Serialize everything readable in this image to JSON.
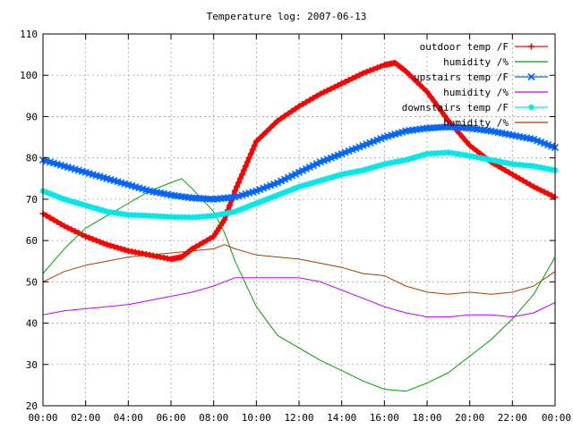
{
  "chart_data": {
    "type": "line",
    "title": "Temperature log: 2007-06-13",
    "xlabel": "",
    "ylabel": "",
    "xlim": [
      0,
      24
    ],
    "ylim": [
      20,
      110
    ],
    "grid": true,
    "legend_position": "top-right",
    "x_ticks": [
      "00:00",
      "02:00",
      "04:00",
      "06:00",
      "08:00",
      "10:00",
      "12:00",
      "14:00",
      "16:00",
      "18:00",
      "20:00",
      "22:00",
      "00:00"
    ],
    "y_ticks": [
      20,
      30,
      40,
      50,
      60,
      70,
      80,
      90,
      100,
      110
    ],
    "series": [
      {
        "name": "outdoor temp /F",
        "color": "#ff0000",
        "marker": "plus",
        "points": [
          [
            0,
            66.5
          ],
          [
            1,
            63.5
          ],
          [
            2,
            61
          ],
          [
            3,
            59
          ],
          [
            4,
            57.5
          ],
          [
            5,
            56.5
          ],
          [
            6,
            55.5
          ],
          [
            6.5,
            56
          ],
          [
            7,
            58
          ],
          [
            8,
            61
          ],
          [
            8.5,
            65
          ],
          [
            9,
            72
          ],
          [
            9.5,
            78
          ],
          [
            10,
            84
          ],
          [
            11,
            89
          ],
          [
            12,
            92.5
          ],
          [
            13,
            95.5
          ],
          [
            14,
            98
          ],
          [
            15,
            100.5
          ],
          [
            16,
            102.5
          ],
          [
            16.5,
            103
          ],
          [
            17,
            101
          ],
          [
            18,
            96
          ],
          [
            19,
            89
          ],
          [
            20,
            83
          ],
          [
            21,
            79
          ],
          [
            22,
            76
          ],
          [
            23,
            73
          ],
          [
            24,
            70.5
          ]
        ]
      },
      {
        "name": "humidity /%",
        "color": "#00a000",
        "marker": "none",
        "points": [
          [
            0,
            52
          ],
          [
            1,
            58
          ],
          [
            2,
            63
          ],
          [
            3,
            66
          ],
          [
            4,
            69
          ],
          [
            5,
            72
          ],
          [
            6,
            74
          ],
          [
            6.5,
            75
          ],
          [
            7,
            72.5
          ],
          [
            8,
            67
          ],
          [
            8.5,
            62
          ],
          [
            9,
            55
          ],
          [
            10,
            44
          ],
          [
            11,
            37
          ],
          [
            12,
            34
          ],
          [
            13,
            31
          ],
          [
            14,
            28.5
          ],
          [
            15,
            26
          ],
          [
            16,
            24
          ],
          [
            17,
            23.5
          ],
          [
            18,
            25.5
          ],
          [
            19,
            28
          ],
          [
            20,
            32
          ],
          [
            21,
            36
          ],
          [
            22,
            41
          ],
          [
            23,
            47
          ],
          [
            24,
            56
          ]
        ]
      },
      {
        "name": "upstairs temp /F",
        "color": "#0066ff",
        "marker": "cross",
        "points": [
          [
            0,
            79.5
          ],
          [
            1,
            78
          ],
          [
            2,
            76.5
          ],
          [
            3,
            75
          ],
          [
            4,
            73.5
          ],
          [
            5,
            72
          ],
          [
            6,
            71
          ],
          [
            7,
            70.3
          ],
          [
            8,
            70
          ],
          [
            9,
            70.5
          ],
          [
            10,
            72
          ],
          [
            11,
            74
          ],
          [
            12,
            76.5
          ],
          [
            13,
            79
          ],
          [
            14,
            81
          ],
          [
            15,
            83
          ],
          [
            16,
            85
          ],
          [
            17,
            86.5
          ],
          [
            18,
            87.2
          ],
          [
            19,
            87.5
          ],
          [
            20,
            87.2
          ],
          [
            21,
            86.5
          ],
          [
            22,
            85.5
          ],
          [
            23,
            84.5
          ],
          [
            24,
            82.5
          ]
        ]
      },
      {
        "name": "humidity /%",
        "color": "#c000ff",
        "marker": "none",
        "points": [
          [
            0,
            42
          ],
          [
            1,
            43
          ],
          [
            2,
            43.5
          ],
          [
            3,
            44
          ],
          [
            4,
            44.5
          ],
          [
            5,
            45.5
          ],
          [
            6,
            46.5
          ],
          [
            7,
            47.5
          ],
          [
            8,
            49
          ],
          [
            9,
            51
          ],
          [
            10,
            51
          ],
          [
            11,
            51
          ],
          [
            12,
            51
          ],
          [
            13,
            50
          ],
          [
            14,
            48
          ],
          [
            15,
            46
          ],
          [
            16,
            44
          ],
          [
            17,
            42.5
          ],
          [
            18,
            41.5
          ],
          [
            19,
            41.5
          ],
          [
            20,
            42
          ],
          [
            21,
            42
          ],
          [
            22,
            41.5
          ],
          [
            23,
            42.5
          ],
          [
            24,
            45
          ]
        ]
      },
      {
        "name": "downstairs temp /F",
        "color": "#00e8e8",
        "marker": "star",
        "points": [
          [
            0,
            72
          ],
          [
            1,
            70
          ],
          [
            2,
            68.5
          ],
          [
            3,
            67
          ],
          [
            4,
            66.2
          ],
          [
            5,
            66
          ],
          [
            6,
            65.7
          ],
          [
            7,
            65.6
          ],
          [
            8,
            66
          ],
          [
            9,
            67
          ],
          [
            10,
            69
          ],
          [
            11,
            71
          ],
          [
            12,
            73
          ],
          [
            13,
            74.5
          ],
          [
            14,
            76
          ],
          [
            15,
            77
          ],
          [
            16,
            78.5
          ],
          [
            17,
            79.5
          ],
          [
            18,
            81
          ],
          [
            19,
            81.3
          ],
          [
            20,
            80.5
          ],
          [
            21,
            79.5
          ],
          [
            22,
            78.5
          ],
          [
            23,
            78
          ],
          [
            24,
            77
          ]
        ]
      },
      {
        "name": "humidity /%",
        "color": "#a04000",
        "marker": "none",
        "points": [
          [
            0,
            50
          ],
          [
            1,
            52.5
          ],
          [
            2,
            54
          ],
          [
            3,
            55
          ],
          [
            4,
            56
          ],
          [
            5,
            56.5
          ],
          [
            6,
            57
          ],
          [
            7,
            57.5
          ],
          [
            8,
            58
          ],
          [
            8.5,
            59
          ],
          [
            9,
            58
          ],
          [
            10,
            56.5
          ],
          [
            11,
            56
          ],
          [
            12,
            55.5
          ],
          [
            13,
            54.5
          ],
          [
            14,
            53.5
          ],
          [
            15,
            52
          ],
          [
            16,
            51.5
          ],
          [
            17,
            49
          ],
          [
            18,
            47.5
          ],
          [
            19,
            47
          ],
          [
            20,
            47.5
          ],
          [
            21,
            47
          ],
          [
            22,
            47.5
          ],
          [
            23,
            49
          ],
          [
            24,
            52.5
          ]
        ]
      }
    ]
  }
}
